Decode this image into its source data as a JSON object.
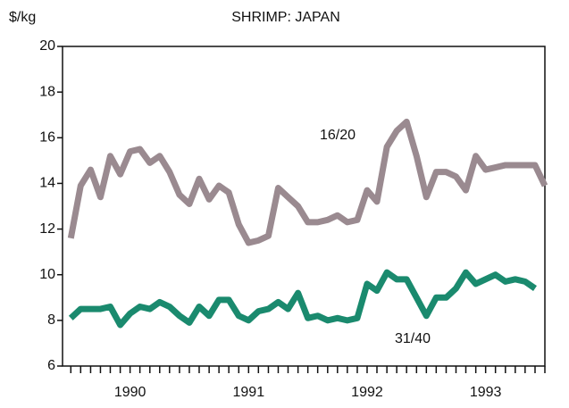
{
  "chart_data": {
    "type": "line",
    "title": "SHRIMP:  JAPAN",
    "y_label": "$/kg",
    "x": [
      1990,
      1990.083,
      1990.167,
      1990.25,
      1990.333,
      1990.417,
      1990.5,
      1990.583,
      1990.667,
      1990.75,
      1990.833,
      1990.917,
      1991,
      1991.083,
      1991.167,
      1991.25,
      1991.333,
      1991.417,
      1991.5,
      1991.583,
      1991.667,
      1991.75,
      1991.833,
      1991.917,
      1992,
      1992.083,
      1992.167,
      1992.25,
      1992.333,
      1992.417,
      1992.5,
      1992.583,
      1992.667,
      1992.75,
      1992.833,
      1992.917,
      1993,
      1993.083,
      1993.167,
      1993.25,
      1993.333,
      1993.417,
      1993.5,
      1993.583,
      1993.667,
      1993.75,
      1993.833,
      1993.917,
      1994
    ],
    "series": [
      {
        "name": "16/20",
        "color": "#9a8a90",
        "values": [
          11.6,
          13.9,
          14.6,
          13.4,
          15.2,
          14.4,
          15.4,
          15.5,
          14.9,
          15.2,
          14.5,
          13.5,
          13.1,
          14.2,
          13.3,
          13.9,
          13.6,
          12.2,
          11.4,
          11.5,
          11.7,
          13.8,
          13.4,
          13.0,
          12.3,
          12.3,
          12.4,
          12.6,
          12.3,
          12.4,
          13.7,
          13.2,
          15.6,
          16.3,
          16.7,
          15.2,
          13.4,
          14.5,
          14.5,
          14.3,
          13.7,
          15.2,
          14.6,
          14.7,
          14.8,
          14.8,
          14.8,
          14.8,
          13.9
        ]
      },
      {
        "name": "31/40",
        "color": "#1a8a6e",
        "values": [
          8.1,
          8.5,
          8.5,
          8.5,
          8.6,
          7.8,
          8.3,
          8.6,
          8.5,
          8.8,
          8.6,
          8.2,
          7.9,
          8.6,
          8.2,
          8.9,
          8.9,
          8.2,
          8.0,
          8.4,
          8.5,
          8.8,
          8.5,
          9.2,
          8.1,
          8.2,
          8.0,
          8.1,
          8.0,
          8.1,
          9.6,
          9.3,
          10.1,
          9.8,
          9.8,
          9.0,
          8.2,
          9.0,
          9.0,
          9.4,
          10.1,
          9.6,
          9.8,
          10.0,
          9.7,
          9.8,
          9.7,
          9.4,
          null
        ]
      }
    ],
    "xlim": [
      1989.93,
      1994.0
    ],
    "xticks": [
      {
        "value": 1990.5,
        "label": "1990"
      },
      {
        "value": 1991.5,
        "label": "1991"
      },
      {
        "value": 1992.5,
        "label": "1992"
      },
      {
        "value": 1993.5,
        "label": "1993"
      }
    ],
    "ylim": [
      6,
      20
    ],
    "yticks": [
      6,
      8,
      10,
      12,
      14,
      16,
      18,
      20
    ]
  }
}
